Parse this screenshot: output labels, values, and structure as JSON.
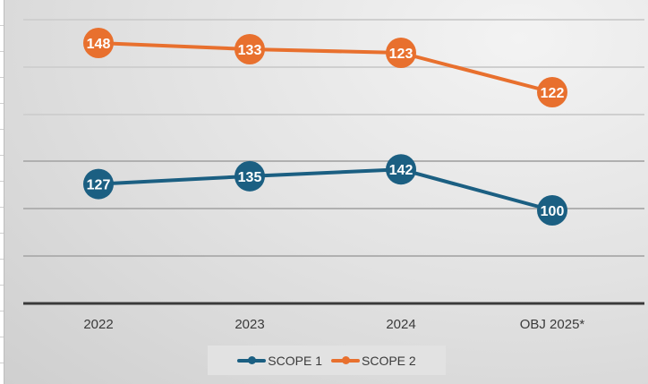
{
  "chart_data": {
    "type": "line",
    "title": "",
    "xlabel": "",
    "ylabel": "",
    "categories": [
      "2022",
      "2023",
      "2024",
      "OBJ 2025*"
    ],
    "series": [
      {
        "name": "SCOPE 1",
        "values": [
          127,
          135,
          142,
          100
        ],
        "color": "#1B5F82"
      },
      {
        "name": "SCOPE 2",
        "values": [
          148,
          133,
          123,
          122
        ],
        "color": "#E8702E"
      }
    ],
    "grid": true,
    "legend": "bottom"
  }
}
